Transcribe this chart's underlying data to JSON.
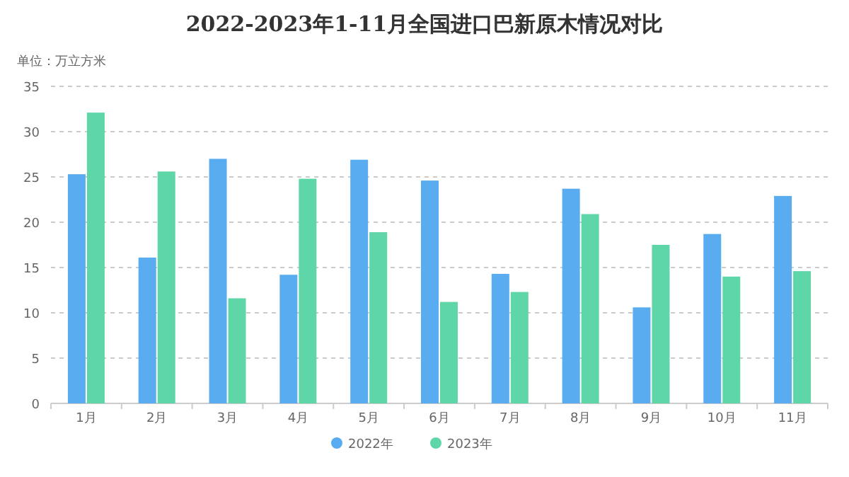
{
  "chart_data": {
    "type": "bar",
    "title": "2022-2023年1-11月全国进口巴新原木情况对比",
    "ylabel": "单位：万立方米",
    "categories": [
      "1月",
      "2月",
      "3月",
      "4月",
      "5月",
      "6月",
      "7月",
      "8月",
      "9月",
      "10月",
      "11月"
    ],
    "series": [
      {
        "name": "2022年",
        "color": "#5aacf0",
        "values": [
          25.3,
          16.1,
          27.0,
          14.2,
          26.9,
          24.6,
          14.3,
          23.7,
          10.6,
          18.7,
          22.9
        ]
      },
      {
        "name": "2023年",
        "color": "#5fd6a8",
        "values": [
          32.1,
          25.6,
          11.6,
          24.8,
          18.9,
          11.2,
          12.3,
          20.9,
          17.5,
          14.0,
          14.6
        ]
      }
    ],
    "ylim": [
      0,
      35
    ],
    "yticks": [
      0,
      5,
      10,
      15,
      20,
      25,
      30,
      35
    ],
    "grid": "y",
    "legend": "bottom"
  }
}
